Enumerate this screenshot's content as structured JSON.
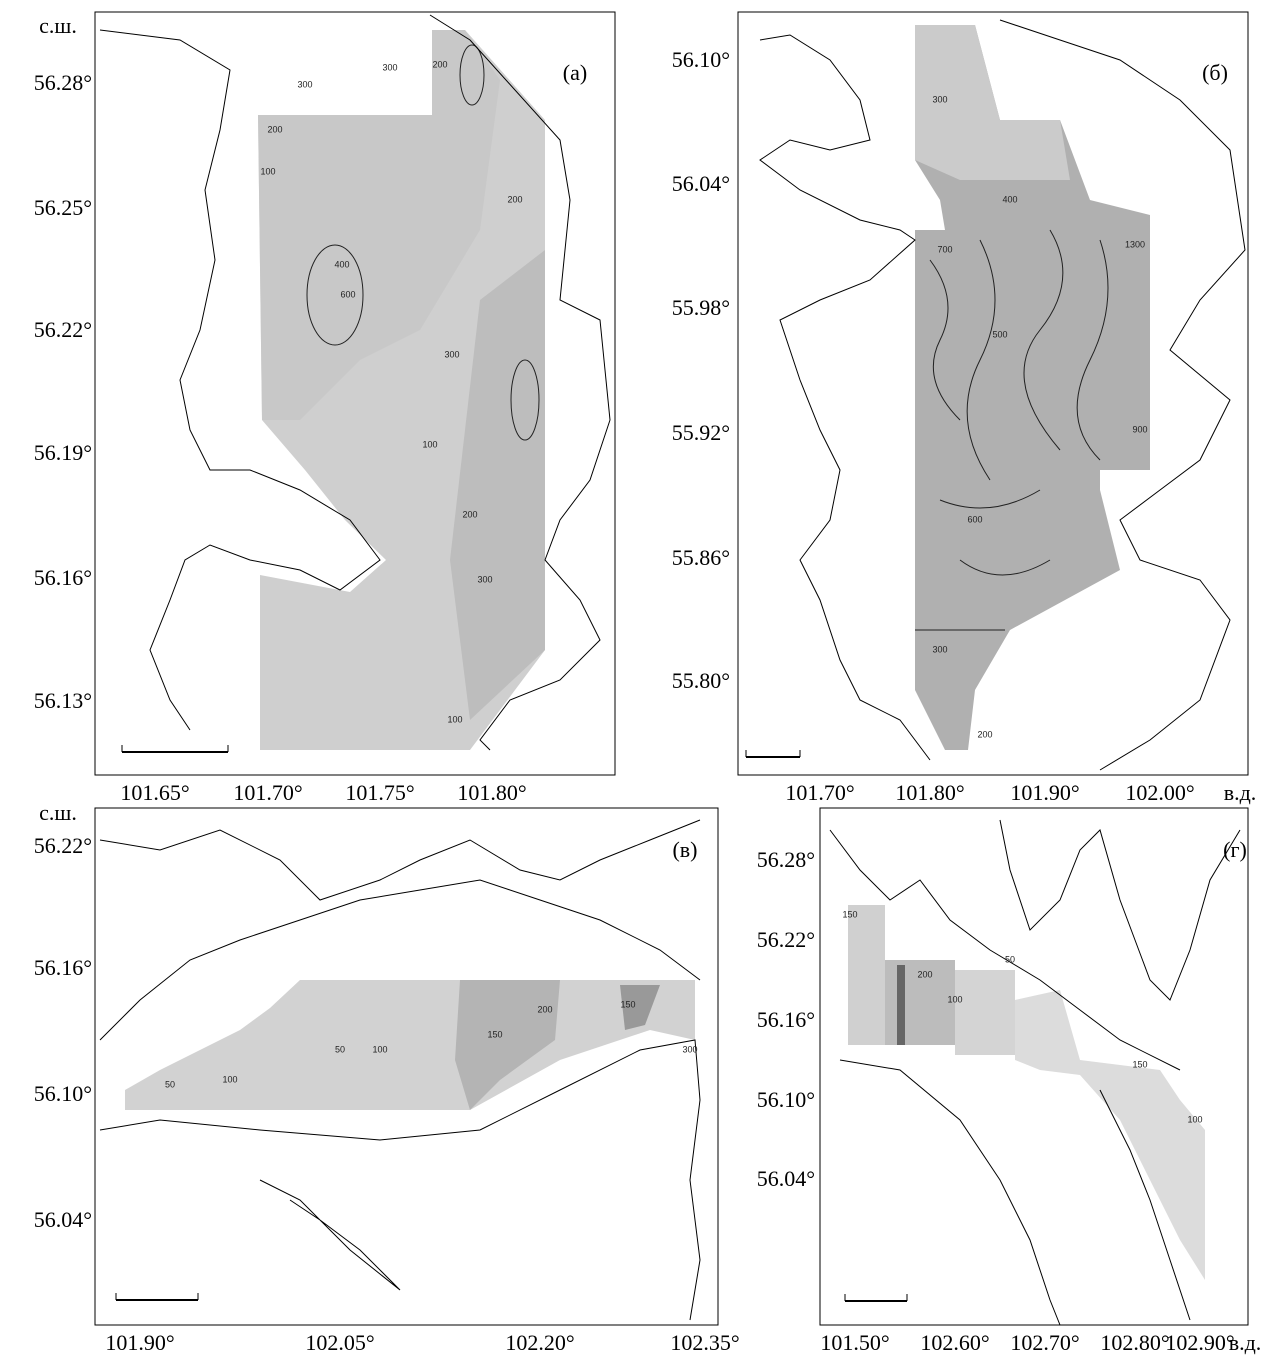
{
  "panels": [
    {
      "label": "(а)",
      "lat_unit": "с.ш.",
      "lat_ticks": [
        "56.28°",
        "56.25°",
        "56.22°",
        "56.19°",
        "56.16°",
        "56.13°"
      ],
      "lon_ticks": [
        "101.65°",
        "101.70°",
        "101.75°",
        "101.80°"
      ],
      "contour_labels": [
        "300",
        "200",
        "300",
        "200",
        "100",
        "200",
        "400",
        "600",
        "300",
        "100",
        "200",
        "300",
        "100"
      ]
    },
    {
      "label": "(б)",
      "lon_unit": "в.д.",
      "lat_ticks": [
        "56.10°",
        "56.04°",
        "55.98°",
        "55.92°",
        "55.86°",
        "55.80°"
      ],
      "lon_ticks": [
        "101.70°",
        "101.80°",
        "101.90°",
        "102.00°"
      ],
      "contour_labels": [
        "300",
        "400",
        "700",
        "1300",
        "500",
        "900",
        "600",
        "300",
        "200"
      ]
    },
    {
      "label": "(в)",
      "lat_unit": "с.ш.",
      "lat_ticks": [
        "56.22°",
        "56.16°",
        "56.10°",
        "56.04°"
      ],
      "lon_ticks": [
        "101.90°",
        "102.05°",
        "102.20°",
        "102.35°"
      ],
      "contour_labels": [
        "50",
        "100",
        "50",
        "100",
        "150",
        "200",
        "150",
        "300"
      ]
    },
    {
      "label": "(г)",
      "lon_unit": "в.д.",
      "lat_ticks": [
        "56.28°",
        "56.22°",
        "56.16°",
        "56.10°",
        "56.04°"
      ],
      "lon_ticks": [
        "101.50°",
        "102.60°",
        "102.70°",
        "102.80°",
        "102.90°"
      ],
      "contour_labels": [
        "150",
        "200",
        "100",
        "50",
        "150",
        "100"
      ]
    }
  ]
}
